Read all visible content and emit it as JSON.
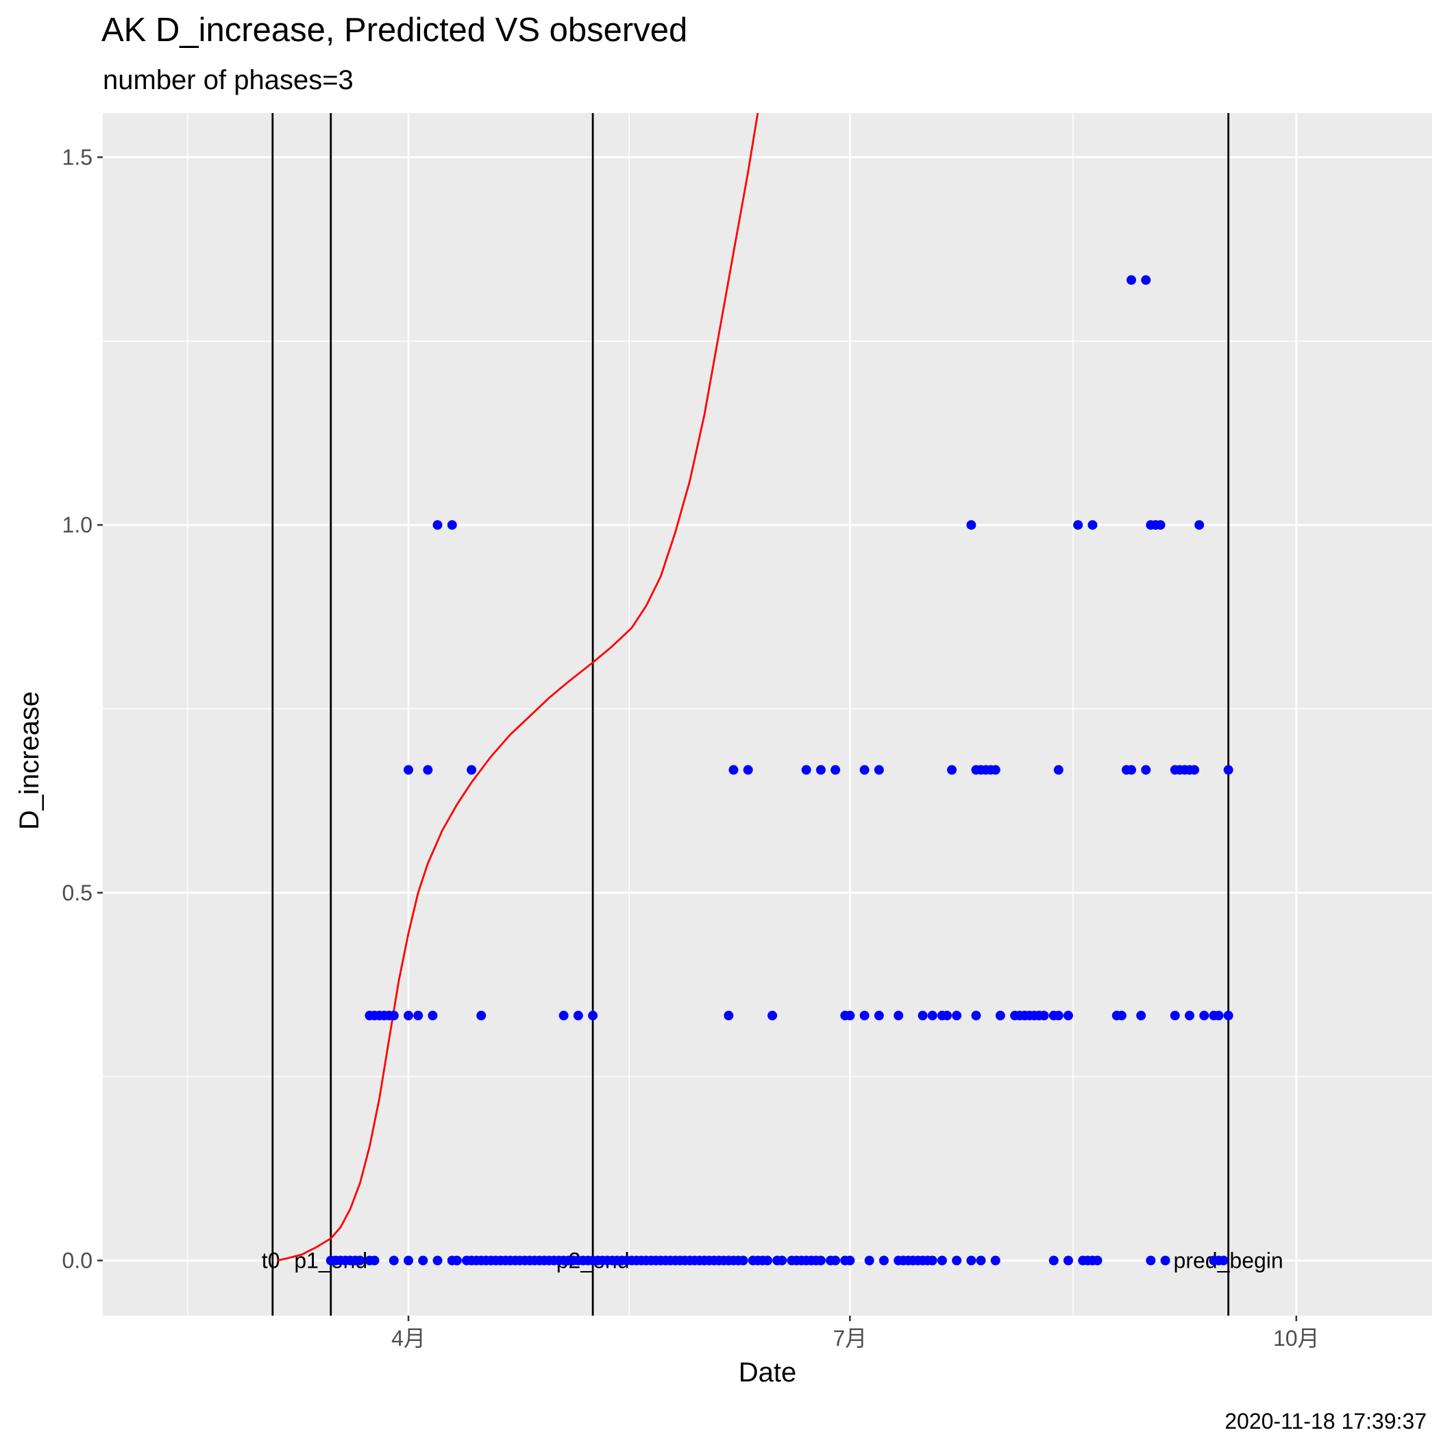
{
  "chart_data": {
    "type": "scatter",
    "title": "AK D_increase, Predicted VS observed",
    "subtitle": "number of phases=3",
    "xlabel": "Date",
    "ylabel": "D_increase",
    "caption": "2020-11-18 17:39:37",
    "xlim": [
      "2020-01-29",
      "2020-10-29"
    ],
    "ylim": [
      -0.075,
      1.56
    ],
    "x_ticks": [
      {
        "date": "2020-04-01",
        "label": "4月"
      },
      {
        "date": "2020-07-01",
        "label": "7月"
      },
      {
        "date": "2020-10-01",
        "label": "10月"
      }
    ],
    "y_ticks": [
      {
        "value": 0.0,
        "label": "0.0"
      },
      {
        "value": 0.5,
        "label": "0.5"
      },
      {
        "value": 1.0,
        "label": "1.0"
      },
      {
        "value": 1.5,
        "label": "1.5"
      }
    ],
    "grid": true,
    "colors": {
      "panel": "#ebebeb",
      "grid": "#ffffff",
      "observed": "#0000ff",
      "predicted": "#ff0000",
      "vline": "#000000"
    },
    "vlines": [
      {
        "date": "2020-03-04",
        "label": "t0",
        "label_anchor": "start"
      },
      {
        "date": "2020-03-16",
        "label": "p1_end",
        "label_anchor": "middle"
      },
      {
        "date": "2020-05-09",
        "label": "p2_end",
        "label_anchor": "middle"
      },
      {
        "date": "2020-09-17",
        "label": "pred_begin",
        "label_anchor": "middle"
      }
    ],
    "series": [
      {
        "kind": "points",
        "rows": [
          {
            "y": 0.0,
            "dates": [
              "2020-03-16",
              "2020-03-17",
              "2020-03-18",
              "2020-03-19",
              "2020-03-20",
              "2020-03-21",
              "2020-03-22",
              "2020-03-24",
              "2020-03-25",
              "2020-03-29",
              "2020-04-01",
              "2020-04-04",
              "2020-04-07",
              "2020-04-10",
              "2020-04-11",
              "2020-04-13",
              "2020-04-14",
              "2020-04-15",
              "2020-04-16",
              "2020-04-17",
              "2020-04-18",
              "2020-04-19",
              "2020-04-20",
              "2020-04-21",
              "2020-04-22",
              "2020-04-23",
              "2020-04-24",
              "2020-04-25",
              "2020-04-26",
              "2020-04-27",
              "2020-04-28",
              "2020-04-29",
              "2020-04-30",
              "2020-05-01",
              "2020-05-02",
              "2020-05-03",
              "2020-05-04",
              "2020-05-05",
              "2020-05-06",
              "2020-05-07",
              "2020-05-08",
              "2020-05-09",
              "2020-05-10",
              "2020-05-11",
              "2020-05-12",
              "2020-05-13",
              "2020-05-14",
              "2020-05-15",
              "2020-05-16",
              "2020-05-17",
              "2020-05-18",
              "2020-05-19",
              "2020-05-20",
              "2020-05-21",
              "2020-05-22",
              "2020-05-23",
              "2020-05-24",
              "2020-05-25",
              "2020-05-26",
              "2020-05-27",
              "2020-05-28",
              "2020-05-29",
              "2020-05-30",
              "2020-05-31",
              "2020-06-01",
              "2020-06-02",
              "2020-06-03",
              "2020-06-04",
              "2020-06-05",
              "2020-06-06",
              "2020-06-07",
              "2020-06-08",
              "2020-06-09",
              "2020-06-11",
              "2020-06-12",
              "2020-06-13",
              "2020-06-14",
              "2020-06-16",
              "2020-06-17",
              "2020-06-19",
              "2020-06-20",
              "2020-06-21",
              "2020-06-22",
              "2020-06-23",
              "2020-06-24",
              "2020-06-25",
              "2020-06-27",
              "2020-06-28",
              "2020-06-30",
              "2020-07-01",
              "2020-07-05",
              "2020-07-08",
              "2020-07-11",
              "2020-07-12",
              "2020-07-13",
              "2020-07-14",
              "2020-07-15",
              "2020-07-16",
              "2020-07-17",
              "2020-07-18",
              "2020-07-20",
              "2020-07-23",
              "2020-07-26",
              "2020-07-28",
              "2020-07-31",
              "2020-08-12",
              "2020-08-15",
              "2020-08-18",
              "2020-08-19",
              "2020-08-20",
              "2020-08-21",
              "2020-09-01",
              "2020-09-04",
              "2020-09-14",
              "2020-09-15",
              "2020-09-16"
            ]
          },
          {
            "y": 0.333,
            "dates": [
              "2020-03-24",
              "2020-03-25",
              "2020-03-26",
              "2020-03-27",
              "2020-03-28",
              "2020-03-29",
              "2020-04-01",
              "2020-04-03",
              "2020-04-06",
              "2020-04-16",
              "2020-05-03",
              "2020-05-06",
              "2020-05-09",
              "2020-06-06",
              "2020-06-15",
              "2020-06-30",
              "2020-07-01",
              "2020-07-04",
              "2020-07-07",
              "2020-07-11",
              "2020-07-16",
              "2020-07-18",
              "2020-07-20",
              "2020-07-21",
              "2020-07-23",
              "2020-07-27",
              "2020-08-01",
              "2020-08-04",
              "2020-08-05",
              "2020-08-06",
              "2020-08-07",
              "2020-08-08",
              "2020-08-09",
              "2020-08-10",
              "2020-08-12",
              "2020-08-13",
              "2020-08-15",
              "2020-08-25",
              "2020-08-26",
              "2020-08-30",
              "2020-09-06",
              "2020-09-09",
              "2020-09-12",
              "2020-09-14",
              "2020-09-15",
              "2020-09-17"
            ]
          },
          {
            "y": 0.667,
            "dates": [
              "2020-04-01",
              "2020-04-05",
              "2020-04-14",
              "2020-06-07",
              "2020-06-10",
              "2020-06-22",
              "2020-06-25",
              "2020-06-28",
              "2020-07-04",
              "2020-07-07",
              "2020-07-22",
              "2020-07-27",
              "2020-07-28",
              "2020-07-29",
              "2020-07-30",
              "2020-07-31",
              "2020-08-13",
              "2020-08-27",
              "2020-08-28",
              "2020-08-31",
              "2020-09-06",
              "2020-09-07",
              "2020-09-08",
              "2020-09-09",
              "2020-09-10",
              "2020-09-17"
            ]
          },
          {
            "y": 1.0,
            "dates": [
              "2020-04-07",
              "2020-04-10",
              "2020-07-26",
              "2020-08-17",
              "2020-08-20",
              "2020-09-01",
              "2020-09-02",
              "2020-09-03",
              "2020-09-11"
            ]
          },
          {
            "y": 1.333,
            "dates": [
              "2020-08-28",
              "2020-08-31"
            ]
          }
        ]
      },
      {
        "kind": "line",
        "points": [
          {
            "x": "2020-03-05",
            "y": 0.0
          },
          {
            "x": "2020-03-07",
            "y": 0.003
          },
          {
            "x": "2020-03-10",
            "y": 0.008
          },
          {
            "x": "2020-03-13",
            "y": 0.018
          },
          {
            "x": "2020-03-16",
            "y": 0.03
          },
          {
            "x": "2020-03-18",
            "y": 0.045
          },
          {
            "x": "2020-03-20",
            "y": 0.07
          },
          {
            "x": "2020-03-22",
            "y": 0.105
          },
          {
            "x": "2020-03-24",
            "y": 0.155
          },
          {
            "x": "2020-03-26",
            "y": 0.22
          },
          {
            "x": "2020-03-28",
            "y": 0.3
          },
          {
            "x": "2020-03-30",
            "y": 0.38
          },
          {
            "x": "2020-04-01",
            "y": 0.445
          },
          {
            "x": "2020-04-03",
            "y": 0.5
          },
          {
            "x": "2020-04-05",
            "y": 0.54
          },
          {
            "x": "2020-04-08",
            "y": 0.585
          },
          {
            "x": "2020-04-11",
            "y": 0.62
          },
          {
            "x": "2020-04-14",
            "y": 0.65
          },
          {
            "x": "2020-04-18",
            "y": 0.685
          },
          {
            "x": "2020-04-22",
            "y": 0.715
          },
          {
            "x": "2020-04-26",
            "y": 0.74
          },
          {
            "x": "2020-04-30",
            "y": 0.765
          },
          {
            "x": "2020-05-04",
            "y": 0.787
          },
          {
            "x": "2020-05-09",
            "y": 0.813
          },
          {
            "x": "2020-05-13",
            "y": 0.835
          },
          {
            "x": "2020-05-17",
            "y": 0.86
          },
          {
            "x": "2020-05-20",
            "y": 0.89
          },
          {
            "x": "2020-05-23",
            "y": 0.93
          },
          {
            "x": "2020-05-26",
            "y": 0.99
          },
          {
            "x": "2020-05-29",
            "y": 1.06
          },
          {
            "x": "2020-06-01",
            "y": 1.15
          },
          {
            "x": "2020-06-04",
            "y": 1.26
          },
          {
            "x": "2020-06-07",
            "y": 1.37
          },
          {
            "x": "2020-06-10",
            "y": 1.48
          },
          {
            "x": "2020-06-12",
            "y": 1.56
          }
        ]
      }
    ]
  }
}
